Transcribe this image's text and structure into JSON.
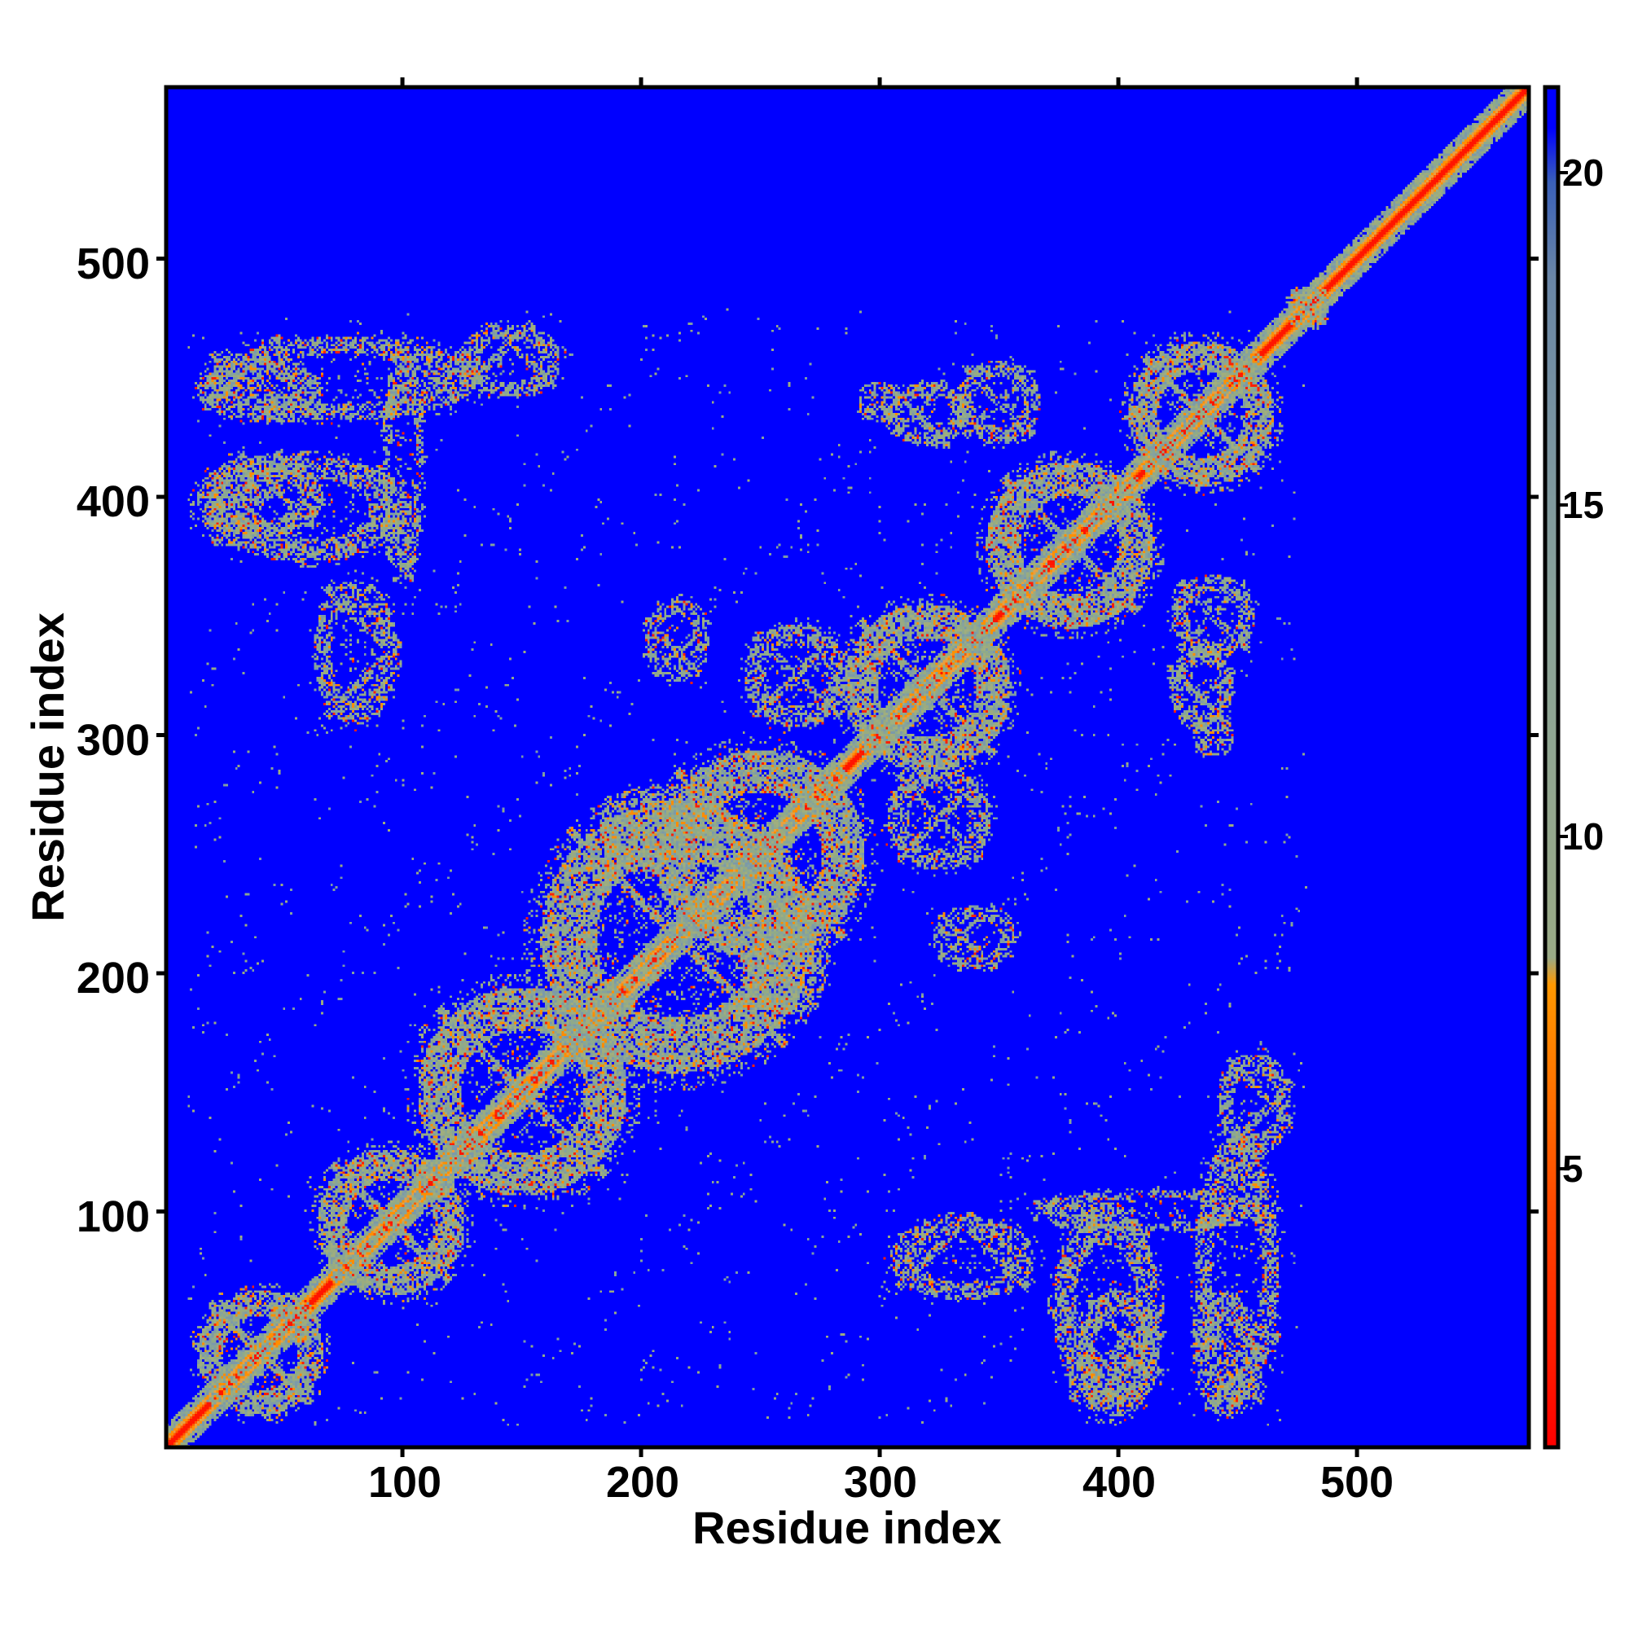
{
  "chart_data": {
    "type": "heatmap",
    "xlabel": "Residue index",
    "ylabel": "Residue index",
    "xlim": [
      1,
      572
    ],
    "ylim": [
      1,
      572
    ],
    "x_ticks": [
      "100",
      "200",
      "300",
      "400",
      "500"
    ],
    "y_ticks": [
      "100",
      "200",
      "300",
      "400",
      "500"
    ],
    "colorbar": {
      "ticks": [
        "5",
        "10",
        "15",
        "20"
      ],
      "range": [
        1,
        21.5
      ],
      "colors": {
        "low": "#ff0000",
        "mid_low": "#ff8c00",
        "mid": "#8aa88e",
        "high": "#5d7fa8",
        "background": "#0000ff"
      }
    },
    "background_color": "#0000ff",
    "diagonal_color": "#ff2a00",
    "contact_regions": [
      {
        "x": [
          10,
          70
        ],
        "y": [
          10,
          70
        ]
      },
      {
        "x": [
          60,
          130
        ],
        "y": [
          60,
          130
        ]
      },
      {
        "x": [
          100,
          200
        ],
        "y": [
          100,
          200
        ]
      },
      {
        "x": [
          150,
          280
        ],
        "y": [
          150,
          280
        ]
      },
      {
        "x": [
          200,
          300
        ],
        "y": [
          200,
          300
        ]
      },
      {
        "x": [
          280,
          360
        ],
        "y": [
          280,
          360
        ]
      },
      {
        "x": [
          340,
          420
        ],
        "y": [
          340,
          420
        ]
      },
      {
        "x": [
          400,
          470
        ],
        "y": [
          400,
          470
        ]
      },
      {
        "x": [
          470,
          490
        ],
        "y": [
          470,
          490
        ]
      },
      {
        "x": [
          380,
          420
        ],
        "y": [
          10,
          70
        ]
      },
      {
        "x": [
          430,
          460
        ],
        "y": [
          10,
          70
        ]
      },
      {
        "x": [
          360,
          470
        ],
        "y": [
          90,
          110
        ]
      },
      {
        "x": [
          440,
          475
        ],
        "y": [
          120,
          170
        ]
      },
      {
        "x": [
          10,
          110
        ],
        "y": [
          370,
          420
        ]
      },
      {
        "x": [
          10,
          140
        ],
        "y": [
          430,
          470
        ]
      },
      {
        "x": [
          60,
          100
        ],
        "y": [
          300,
          370
        ]
      },
      {
        "x": [
          240,
          280
        ],
        "y": [
          180,
          220
        ]
      },
      {
        "x": [
          300,
          350
        ],
        "y": [
          240,
          290
        ]
      },
      {
        "x": [
          320,
          360
        ],
        "y": [
          200,
          230
        ]
      },
      {
        "x": [
          420,
          460
        ],
        "y": [
          330,
          370
        ]
      },
      {
        "x": [
          430,
          450
        ],
        "y": [
          290,
          310
        ]
      },
      {
        "x": [
          300,
          340
        ],
        "y": [
          420,
          450
        ]
      }
    ]
  }
}
